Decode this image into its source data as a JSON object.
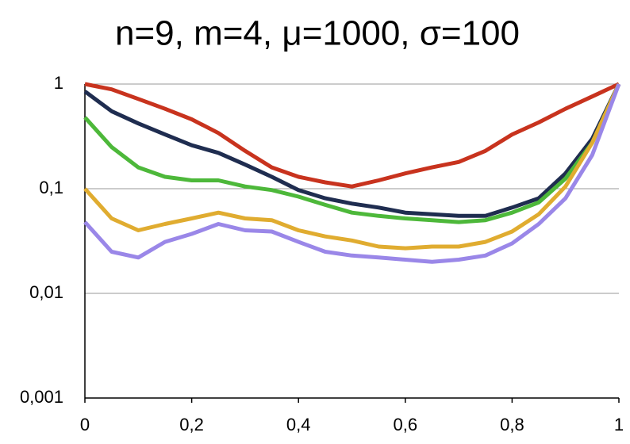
{
  "chart_data": {
    "type": "line",
    "title": "n=9, m=4, μ=1000, σ=100",
    "x": [
      0,
      0.05,
      0.1,
      0.15,
      0.2,
      0.25,
      0.3,
      0.35,
      0.4,
      0.45,
      0.5,
      0.55,
      0.6,
      0.65,
      0.7,
      0.75,
      0.8,
      0.85,
      0.9,
      0.95,
      1
    ],
    "series": [
      {
        "color": "#c8331e",
        "values": [
          1,
          0.89,
          0.72,
          0.58,
          0.46,
          0.34,
          0.23,
          0.16,
          0.13,
          0.115,
          0.105,
          0.12,
          0.14,
          0.16,
          0.18,
          0.23,
          0.33,
          0.43,
          0.58,
          0.76,
          1
        ]
      },
      {
        "color": "#1f2d50",
        "values": [
          0.85,
          0.55,
          0.42,
          0.33,
          0.26,
          0.22,
          0.17,
          0.13,
          0.097,
          0.081,
          0.072,
          0.066,
          0.059,
          0.057,
          0.055,
          0.055,
          0.066,
          0.081,
          0.14,
          0.3,
          1
        ]
      },
      {
        "color": "#4db83a",
        "values": [
          0.48,
          0.25,
          0.16,
          0.13,
          0.12,
          0.12,
          0.105,
          0.097,
          0.084,
          0.07,
          0.059,
          0.055,
          0.052,
          0.05,
          0.048,
          0.05,
          0.059,
          0.074,
          0.125,
          0.275,
          1
        ]
      },
      {
        "color": "#e0ac30",
        "values": [
          0.1,
          0.052,
          0.04,
          0.046,
          0.052,
          0.059,
          0.052,
          0.05,
          0.04,
          0.035,
          0.032,
          0.028,
          0.027,
          0.028,
          0.028,
          0.031,
          0.039,
          0.057,
          0.105,
          0.275,
          1
        ]
      },
      {
        "color": "#9a87e8",
        "values": [
          0.048,
          0.025,
          0.022,
          0.031,
          0.037,
          0.046,
          0.04,
          0.039,
          0.031,
          0.025,
          0.023,
          0.022,
          0.021,
          0.02,
          0.021,
          0.023,
          0.03,
          0.046,
          0.081,
          0.21,
          1
        ]
      }
    ],
    "xlim": [
      0,
      1
    ],
    "xticks": [
      0,
      {
        "value": 0.2,
        "label": "0,2"
      },
      {
        "value": 0.4,
        "label": "0,4"
      },
      {
        "value": 0.6,
        "label": "0,6"
      },
      {
        "value": 0.8,
        "label": "0,8"
      },
      1
    ],
    "ylim": [
      0.001,
      1
    ],
    "yticks": [
      1,
      {
        "value": 0.1,
        "label": "0,1"
      },
      {
        "value": 0.01,
        "label": "0,01"
      },
      {
        "value": 0.001,
        "label": "0,001"
      }
    ],
    "log_y": true,
    "grid": true
  }
}
